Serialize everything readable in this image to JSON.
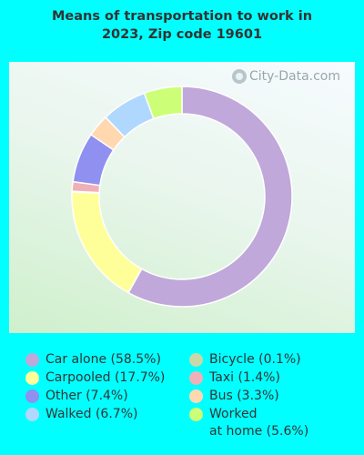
{
  "title_line1": "Means of transportation to work in",
  "title_line2": "2023, Zip code 19601",
  "watermark": "City-Data.com",
  "chart_data": {
    "type": "pie",
    "donut": true,
    "title": "Means of transportation to work in 2023, Zip code 19601",
    "legend_position": "bottom",
    "slices": [
      {
        "label": "Car alone (58.5%)",
        "value": 58.5,
        "color": "#c0a8da"
      },
      {
        "label": "Carpooled (17.7%)",
        "value": 17.7,
        "color": "#ffff99"
      },
      {
        "label": "Bicycle (0.1%)",
        "value": 0.1,
        "color": "#c8d8a8"
      },
      {
        "label": "Taxi (1.4%)",
        "value": 1.4,
        "color": "#f0b0b8"
      },
      {
        "label": "Other (7.4%)",
        "value": 7.4,
        "color": "#9090f0"
      },
      {
        "label": "Bus (3.3%)",
        "value": 3.3,
        "color": "#ffd8b0"
      },
      {
        "label": "Walked (6.7%)",
        "value": 6.7,
        "color": "#b0d8ff"
      },
      {
        "label": "Worked at home (5.6%)",
        "value": 5.6,
        "color": "#ccff77"
      }
    ]
  },
  "legend": {
    "left": [
      {
        "label": "Car alone (58.5%)",
        "color": "#c0a8da"
      },
      {
        "label": "Carpooled (17.7%)",
        "color": "#ffff99"
      },
      {
        "label": "Other (7.4%)",
        "color": "#9090f0"
      },
      {
        "label": "Walked (6.7%)",
        "color": "#b0d8ff"
      }
    ],
    "right": [
      {
        "label": "Bicycle (0.1%)",
        "color": "#c8d8a8"
      },
      {
        "label": "Taxi (1.4%)",
        "color": "#f0b0b8"
      },
      {
        "label": "Bus (3.3%)",
        "color": "#ffd8b0"
      },
      {
        "label": "Worked",
        "label2": "at home (5.6%)",
        "color": "#ccff77"
      }
    ]
  }
}
